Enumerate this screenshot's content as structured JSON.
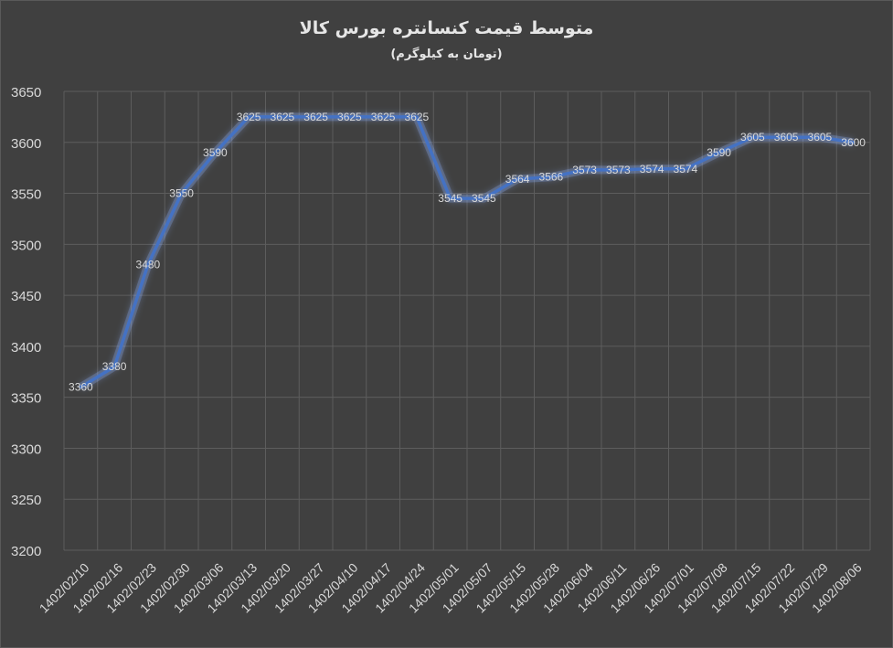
{
  "chart_data": {
    "type": "line",
    "title": "متوسط قیمت کنسانتره بورس کالا",
    "subtitle": "(تومان به کیلوگرم)",
    "xlabel": "",
    "ylabel": "",
    "ylim": [
      3200,
      3650
    ],
    "yticks": [
      3200,
      3250,
      3300,
      3350,
      3400,
      3450,
      3500,
      3550,
      3600,
      3650
    ],
    "grid": true,
    "categories": [
      "1402/02/10",
      "1402/02/16",
      "1402/02/23",
      "1402/02/30",
      "1402/03/06",
      "1402/03/13",
      "1402/03/20",
      "1402/03/27",
      "1402/04/10",
      "1402/04/17",
      "1402/04/24",
      "1402/05/01",
      "1402/05/07",
      "1402/05/15",
      "1402/05/28",
      "1402/06/04",
      "1402/06/11",
      "1402/06/26",
      "1402/07/01",
      "1402/07/08",
      "1402/07/15",
      "1402/07/22",
      "1402/07/29",
      "1402/08/06"
    ],
    "series": [
      {
        "values": [
          3360,
          3380,
          3480,
          3550,
          3590,
          3625,
          3625,
          3625,
          3625,
          3625,
          3625,
          3545,
          3545,
          3564,
          3566,
          3573,
          3573,
          3574,
          3574,
          3590,
          3605,
          3605,
          3605,
          3600
        ]
      }
    ],
    "colors": {
      "line": "#4472c4",
      "glow": "#8fb3ff",
      "grid": "#5d5d5d",
      "text": "#d9d9d9",
      "background": "#404040"
    }
  }
}
